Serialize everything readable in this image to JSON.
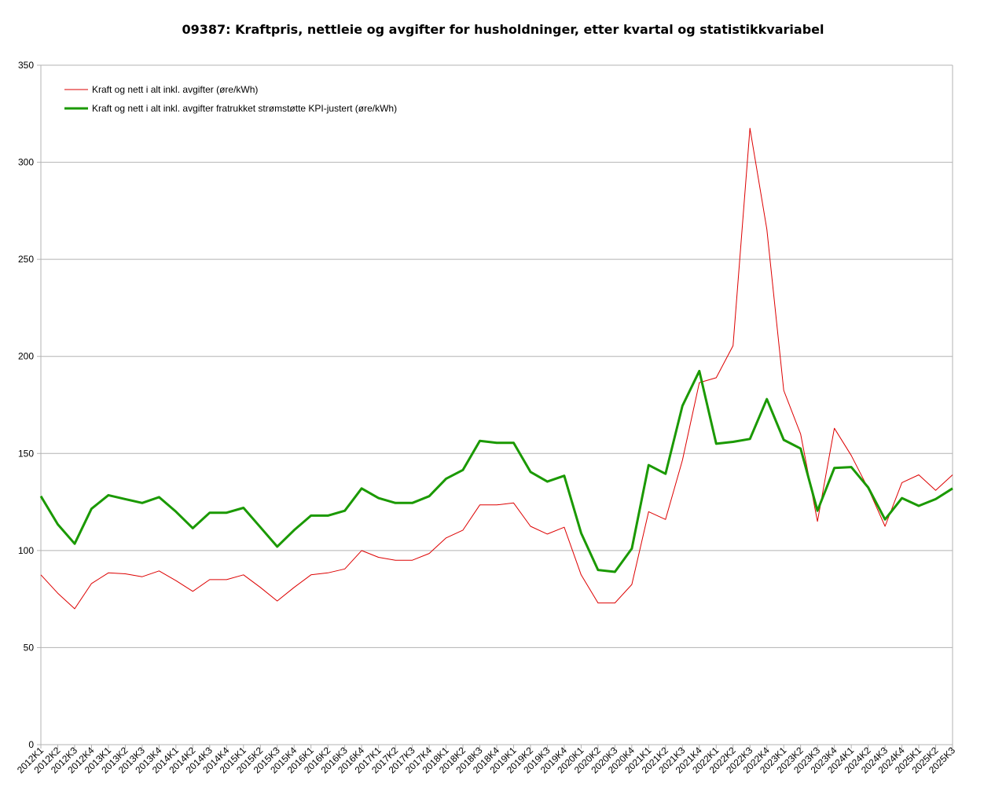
{
  "chart_data": {
    "type": "line",
    "title": "09387: Kraftpris, nettleie og avgifter for husholdninger, etter kvartal og statistikkvariabel",
    "xlabel": "",
    "ylabel": "",
    "ylim": [
      0,
      350
    ],
    "yticks": [
      0,
      50,
      100,
      150,
      200,
      250,
      300,
      350
    ],
    "grid": true,
    "legend_position": "top-left",
    "categories": [
      "2012K1",
      "2012K2",
      "2012K3",
      "2012K4",
      "2013K1",
      "2013K2",
      "2013K3",
      "2013K4",
      "2014K1",
      "2014K2",
      "2014K3",
      "2014K4",
      "2015K1",
      "2015K2",
      "2015K3",
      "2015K4",
      "2016K1",
      "2016K2",
      "2016K3",
      "2016K4",
      "2017K1",
      "2017K2",
      "2017K3",
      "2017K4",
      "2018K1",
      "2018K2",
      "2018K3",
      "2018K4",
      "2019K1",
      "2019K2",
      "2019K3",
      "2019K4",
      "2020K1",
      "2020K2",
      "2020K3",
      "2020K4",
      "2021K1",
      "2021K2",
      "2021K3",
      "2021K4",
      "2022K1",
      "2022K2",
      "2022K3",
      "2022K4",
      "2023K1",
      "2023K2",
      "2023K3",
      "2023K4",
      "2024K1",
      "2024K2",
      "2024K3",
      "2024K4",
      "2025K1",
      "2025K2",
      "2025K3"
    ],
    "series": [
      {
        "name": "Kraft og nett i alt inkl. avgifter (øre/kWh)",
        "color": "#dd0000",
        "width": 1,
        "values": [
          87.5,
          78,
          70,
          83,
          88.5,
          88,
          86.5,
          89.5,
          84.5,
          79,
          85,
          85,
          87.5,
          81,
          74,
          81,
          87.5,
          88.5,
          90.5,
          100,
          96.5,
          95,
          95,
          98.5,
          106.5,
          110.5,
          123.5,
          123.5,
          124.5,
          112.5,
          108.5,
          112,
          87.5,
          73,
          73,
          82.5,
          120,
          116,
          146.5,
          186.5,
          189,
          205.5,
          317.5,
          265.5,
          182.5,
          160,
          115,
          163,
          149,
          132,
          112.5,
          135,
          139,
          131,
          139
        ]
      },
      {
        "name": "Kraft og nett i alt inkl. avgifter fratrukket strømstøtte KPI-justert (øre/kWh)",
        "color": "#1a9900",
        "width": 3,
        "values": [
          128,
          113.5,
          103.5,
          121.5,
          128.5,
          126.5,
          124.5,
          127.5,
          120,
          111.5,
          119.5,
          119.5,
          122,
          112,
          102,
          110.5,
          118,
          118,
          120.5,
          132,
          127,
          124.5,
          124.5,
          128,
          137,
          141.5,
          156.5,
          155.5,
          155.5,
          140.5,
          135.5,
          138.5,
          109,
          90,
          89,
          101,
          144,
          139.5,
          174.5,
          192.5,
          155,
          156,
          157.5,
          178,
          157,
          152.5,
          120.5,
          142.5,
          143,
          132.5,
          116,
          127,
          123,
          126.5,
          132
        ]
      }
    ]
  }
}
